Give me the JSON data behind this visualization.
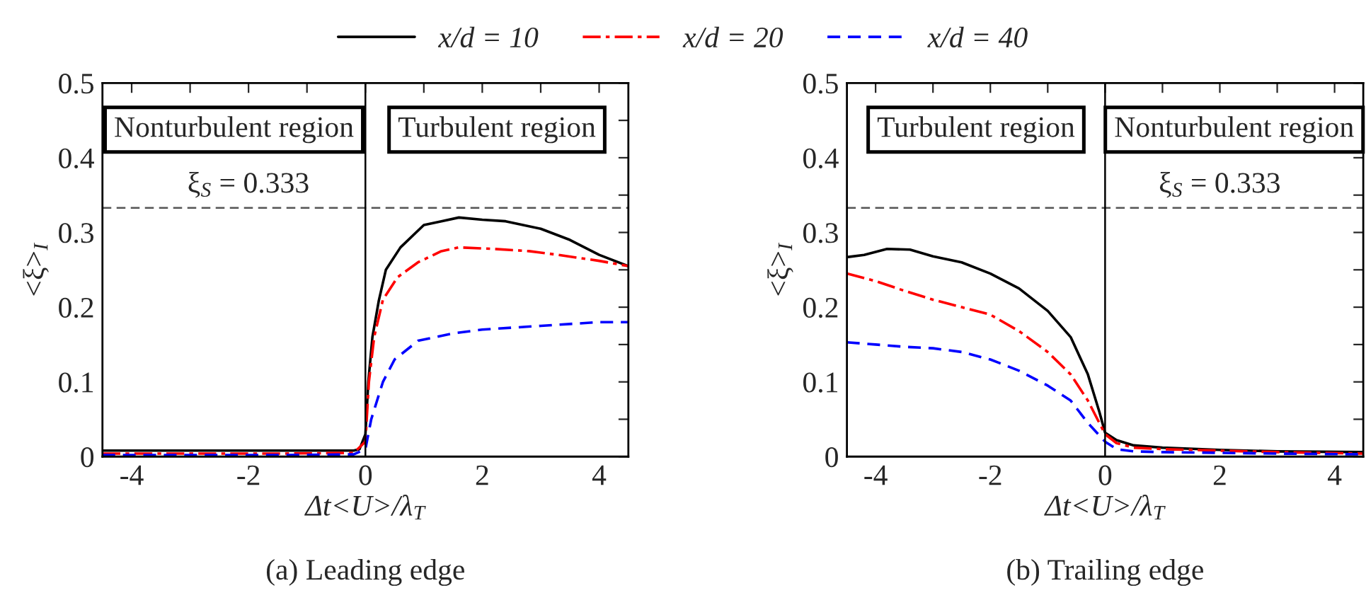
{
  "chart_data": [
    {
      "type": "line",
      "title": "(a) Leading edge",
      "xlabel": "Δt<U>/λ$_{T}$",
      "ylabel": "<ξ>$_{I}$",
      "xlim": [
        -4.5,
        4.5
      ],
      "ylim": [
        0,
        0.5
      ],
      "xticks": [
        -4,
        {
          "value": -3,
          "label": null
        },
        -2,
        {
          "value": -1,
          "label": null
        },
        0,
        {
          "value": 1,
          "label": null
        },
        2,
        {
          "value": 3,
          "label": null
        },
        4
      ],
      "yticks": [
        0,
        {
          "value": 0.05,
          "label": null
        },
        0.1,
        {
          "value": 0.15,
          "label": null
        },
        0.2,
        {
          "value": 0.25,
          "label": null
        },
        0.3,
        {
          "value": 0.35,
          "label": null
        },
        0.4,
        {
          "value": 0.45,
          "label": null
        },
        0.5
      ],
      "legend": "top",
      "grid": false,
      "annotations": [
        "Nonturbulent region",
        "Turbulent region"
      ],
      "ref_lines": [
        {
          "axis": "y",
          "value": 0.333,
          "label": "ξ$_{S}$ = 0.333",
          "color": "#555555",
          "line_style": "dashed"
        },
        {
          "axis": "x",
          "value": 0,
          "color": "#000000",
          "line_style": "solid"
        }
      ],
      "series": [
        {
          "name": "x/d = 10",
          "color": "#000000",
          "line_style": "solid",
          "x": [
            -4.5,
            -3,
            -1.5,
            -0.2,
            -0.1,
            0,
            0.05,
            0.12,
            0.23,
            0.35,
            0.6,
            1.0,
            1.3,
            1.6,
            2.0,
            2.4,
            3.0,
            3.5,
            4.0,
            4.5
          ],
          "values": [
            0.008,
            0.008,
            0.008,
            0.008,
            0.01,
            0.03,
            0.1,
            0.16,
            0.209,
            0.25,
            0.28,
            0.31,
            0.315,
            0.32,
            0.317,
            0.315,
            0.305,
            0.29,
            0.27,
            0.255
          ]
        },
        {
          "name": "x/d = 20",
          "color": "#ff0000",
          "line_style": "dashdot",
          "x": [
            -4.5,
            -3,
            -1.5,
            -0.2,
            0,
            0.06,
            0.15,
            0.3,
            0.55,
            0.9,
            1.3,
            1.6,
            2.2,
            2.8,
            3.3,
            4.0,
            4.5
          ],
          "values": [
            0.004,
            0.004,
            0.004,
            0.005,
            0.02,
            0.1,
            0.16,
            0.21,
            0.24,
            0.26,
            0.275,
            0.28,
            0.278,
            0.275,
            0.27,
            0.262,
            0.255
          ]
        },
        {
          "name": "x/d = 40",
          "color": "#0000ff",
          "line_style": "dashed",
          "x": [
            -4.5,
            -3,
            -1.5,
            -0.2,
            0,
            0.1,
            0.3,
            0.5,
            0.9,
            1.5,
            2.0,
            3.0,
            4.0,
            4.5
          ],
          "values": [
            0.002,
            0.002,
            0.002,
            0.003,
            0.01,
            0.05,
            0.1,
            0.13,
            0.155,
            0.165,
            0.17,
            0.175,
            0.18,
            0.18
          ]
        }
      ]
    },
    {
      "type": "line",
      "title": "(b) Trailing edge",
      "xlabel": "Δt<U>/λ$_{T}$",
      "ylabel": "<ξ>$_{I}$",
      "xlim": [
        -4.5,
        4.5
      ],
      "ylim": [
        0,
        0.5
      ],
      "xticks": [
        -4,
        {
          "value": -3,
          "label": null
        },
        -2,
        {
          "value": -1,
          "label": null
        },
        0,
        {
          "value": 1,
          "label": null
        },
        2,
        {
          "value": 3,
          "label": null
        },
        4
      ],
      "yticks": [
        0,
        {
          "value": 0.05,
          "label": null
        },
        0.1,
        {
          "value": 0.15,
          "label": null
        },
        0.2,
        {
          "value": 0.25,
          "label": null
        },
        0.3,
        {
          "value": 0.35,
          "label": null
        },
        0.4,
        {
          "value": 0.45,
          "label": null
        },
        0.5
      ],
      "grid": false,
      "annotations": [
        "Turbulent region",
        "Nonturbulent region"
      ],
      "ref_lines": [
        {
          "axis": "y",
          "value": 0.333,
          "label": "ξ$_{S}$ = 0.333",
          "color": "#555555",
          "line_style": "dashed"
        },
        {
          "axis": "x",
          "value": 0,
          "color": "#000000",
          "line_style": "solid"
        }
      ],
      "series": [
        {
          "color": "#000000",
          "line_style": "solid",
          "x": [
            -4.5,
            -4.2,
            -3.8,
            -3.4,
            -3.0,
            -2.5,
            -2.0,
            -1.5,
            -1.0,
            -0.6,
            -0.3,
            -0.1,
            0,
            0.2,
            0.5,
            1,
            2,
            3,
            4.5
          ],
          "values": [
            0.267,
            0.27,
            0.278,
            0.277,
            0.268,
            0.26,
            0.245,
            0.225,
            0.195,
            0.16,
            0.11,
            0.06,
            0.032,
            0.022,
            0.015,
            0.012,
            0.009,
            0.007,
            0.006
          ]
        },
        {
          "color": "#ff0000",
          "line_style": "dashdot",
          "x": [
            -4.5,
            -4,
            -3.5,
            -3,
            -2.5,
            -2,
            -1.5,
            -1,
            -0.6,
            -0.3,
            0,
            0.2,
            0.5,
            1,
            2,
            3,
            4.5
          ],
          "values": [
            0.245,
            0.235,
            0.222,
            0.21,
            0.2,
            0.19,
            0.168,
            0.14,
            0.11,
            0.075,
            0.03,
            0.018,
            0.012,
            0.01,
            0.008,
            0.006,
            0.004
          ]
        },
        {
          "color": "#0000ff",
          "line_style": "dashed",
          "x": [
            -4.5,
            -4,
            -3.5,
            -3,
            -2.5,
            -2,
            -1.5,
            -1,
            -0.6,
            -0.3,
            0,
            0.2,
            0.5,
            1,
            2,
            3,
            4.5
          ],
          "values": [
            0.153,
            0.15,
            0.147,
            0.145,
            0.14,
            0.13,
            0.115,
            0.095,
            0.075,
            0.045,
            0.02,
            0.01,
            0.007,
            0.006,
            0.005,
            0.004,
            0.003
          ]
        }
      ]
    }
  ]
}
